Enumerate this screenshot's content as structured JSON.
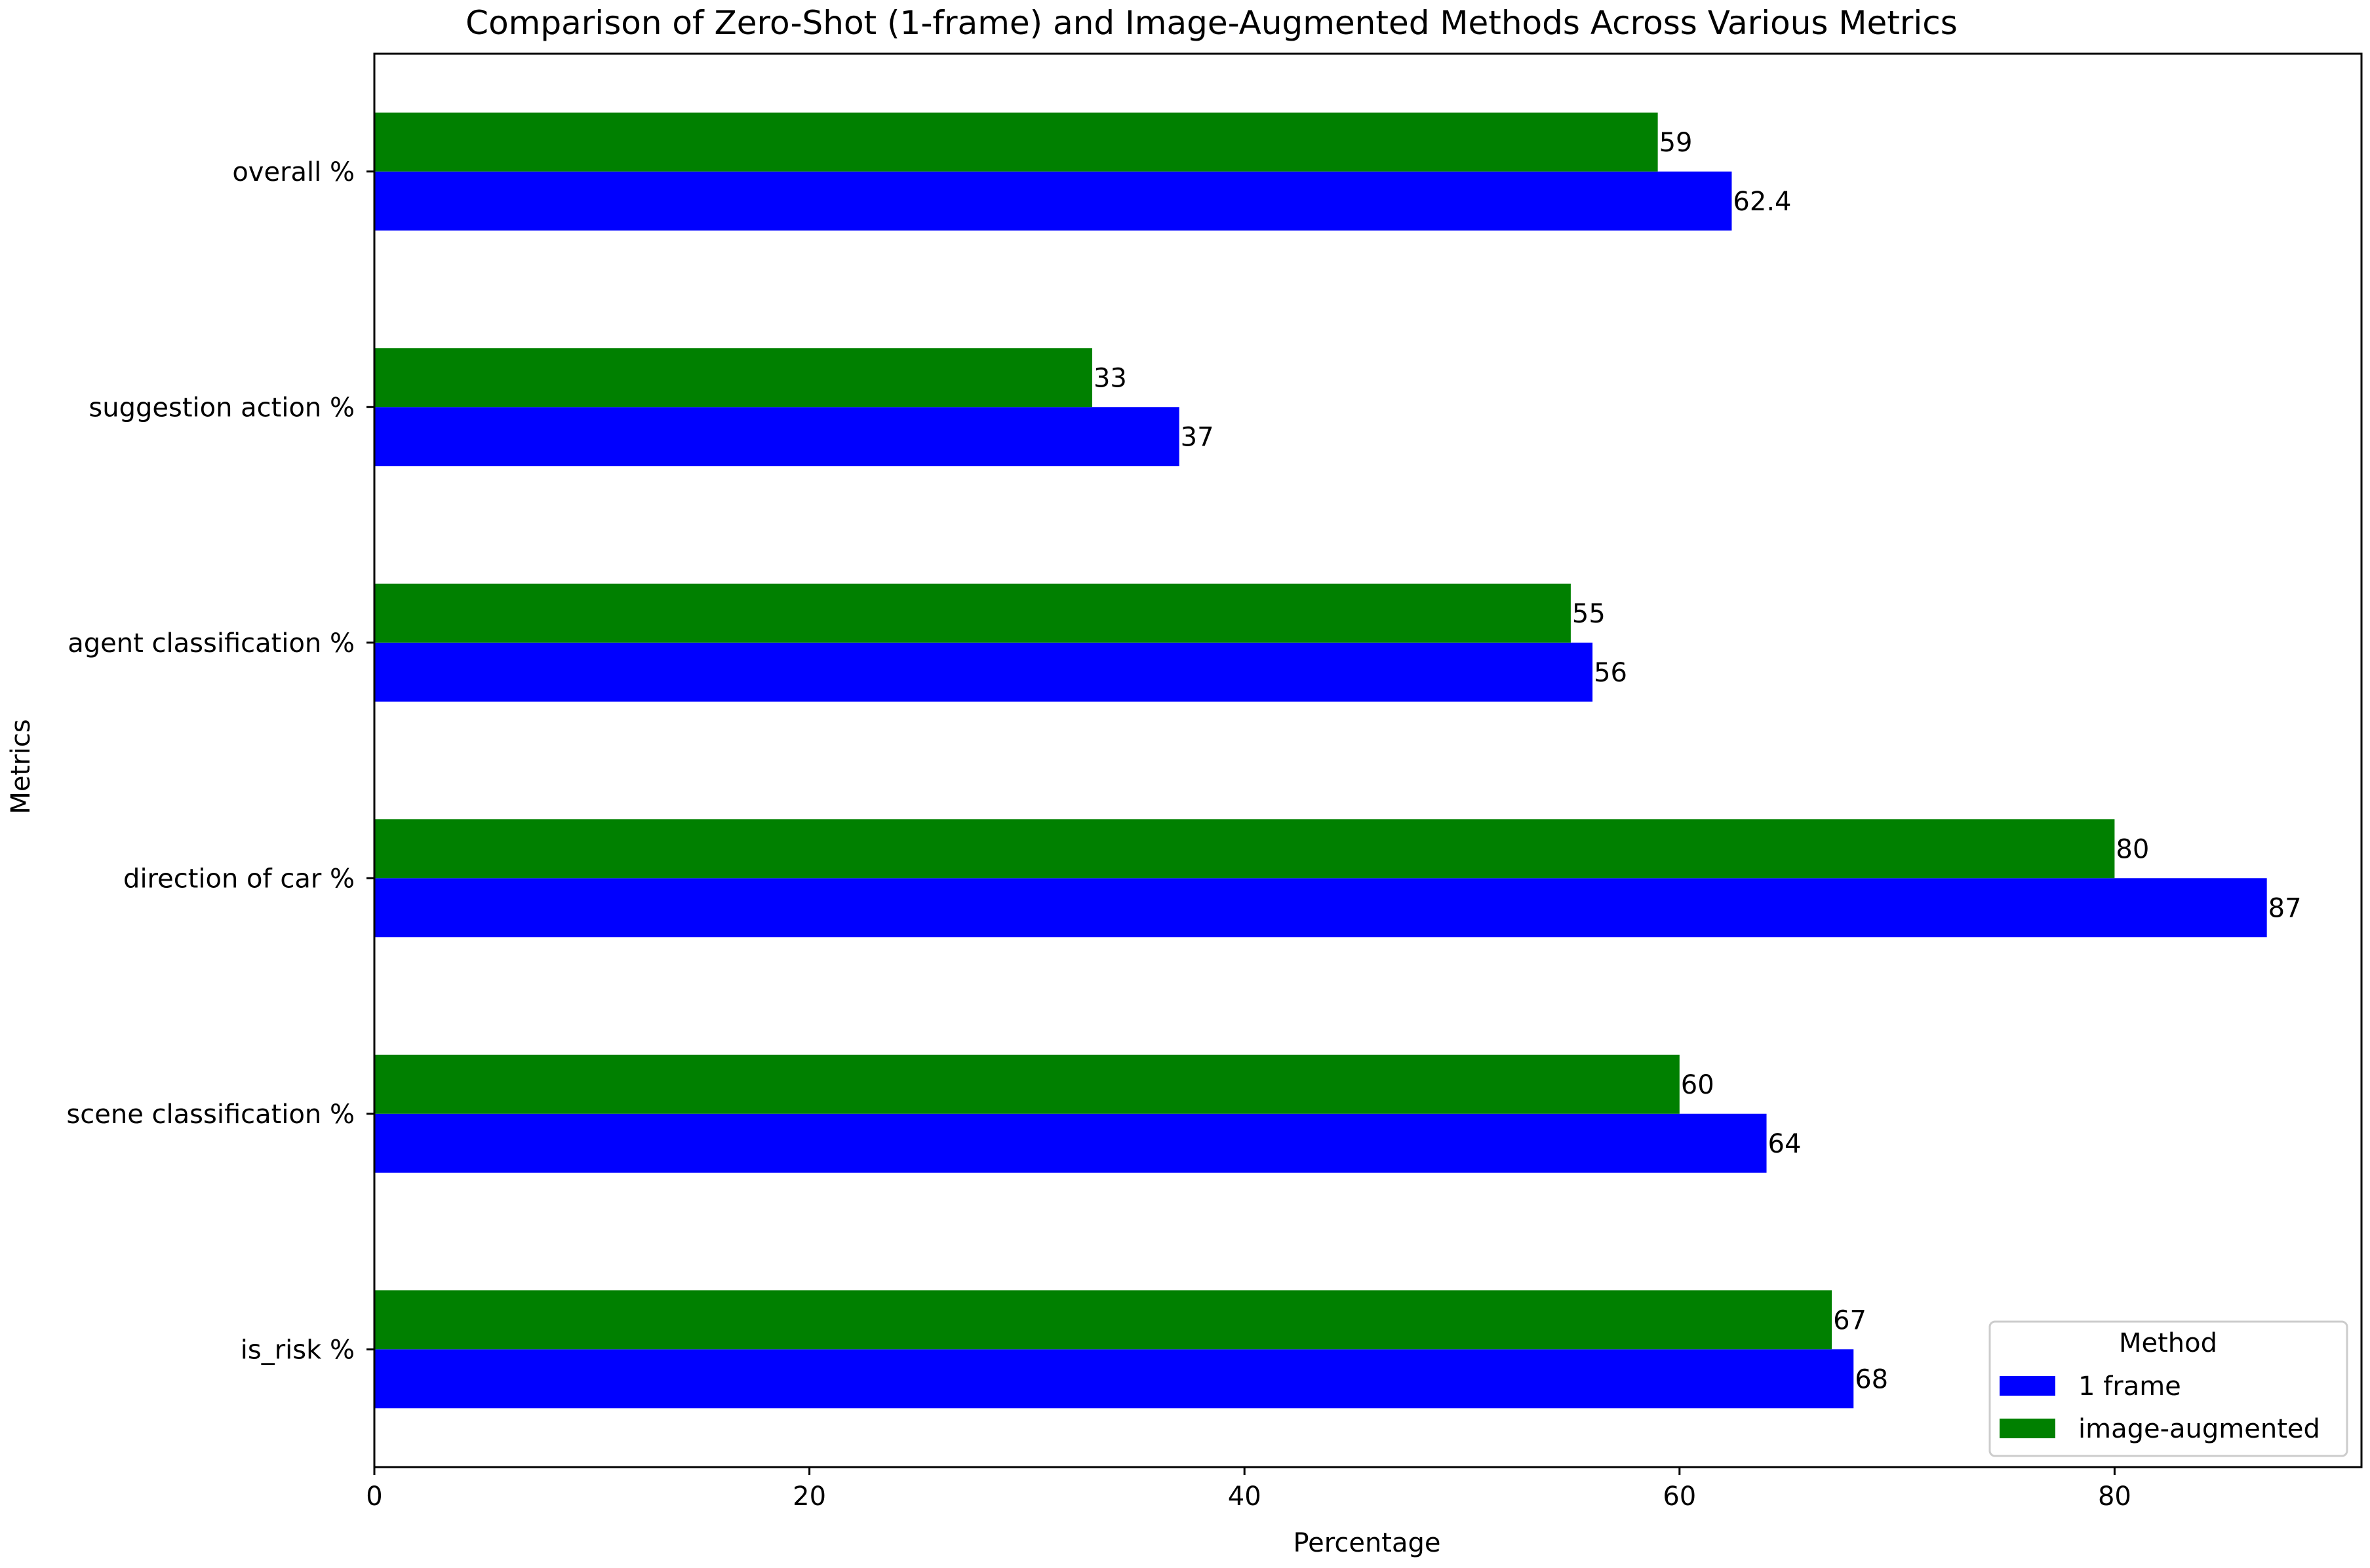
{
  "chart_data": {
    "type": "bar",
    "orientation": "horizontal",
    "title": "Comparison of Zero-Shot (1-frame) and Image-Augmented Methods Across Various Metrics",
    "xlabel": "Percentage",
    "ylabel": "Metrics",
    "categories": [
      "is_risk %",
      "scene classification %",
      "direction of car %",
      "agent classification %",
      "suggestion action %",
      "overall %"
    ],
    "series": [
      {
        "name": "1 frame",
        "color": "#0000ff",
        "values": [
          68,
          64,
          87,
          56,
          37,
          62.4
        ],
        "labels": [
          "68",
          "64",
          "87",
          "56",
          "37",
          "62.4"
        ]
      },
      {
        "name": "image-augmented",
        "color": "#008000",
        "values": [
          67,
          60,
          80,
          55,
          33,
          59
        ],
        "labels": [
          "67",
          "60",
          "80",
          "55",
          "33",
          "59"
        ]
      }
    ],
    "xlim": [
      0,
      91.35
    ],
    "xticks": [
      0,
      20,
      40,
      60,
      80
    ],
    "xtick_labels": [
      "0",
      "20",
      "40",
      "60",
      "80"
    ],
    "grid": false,
    "legend": {
      "title": "Method",
      "placement": "bottom-right"
    }
  }
}
